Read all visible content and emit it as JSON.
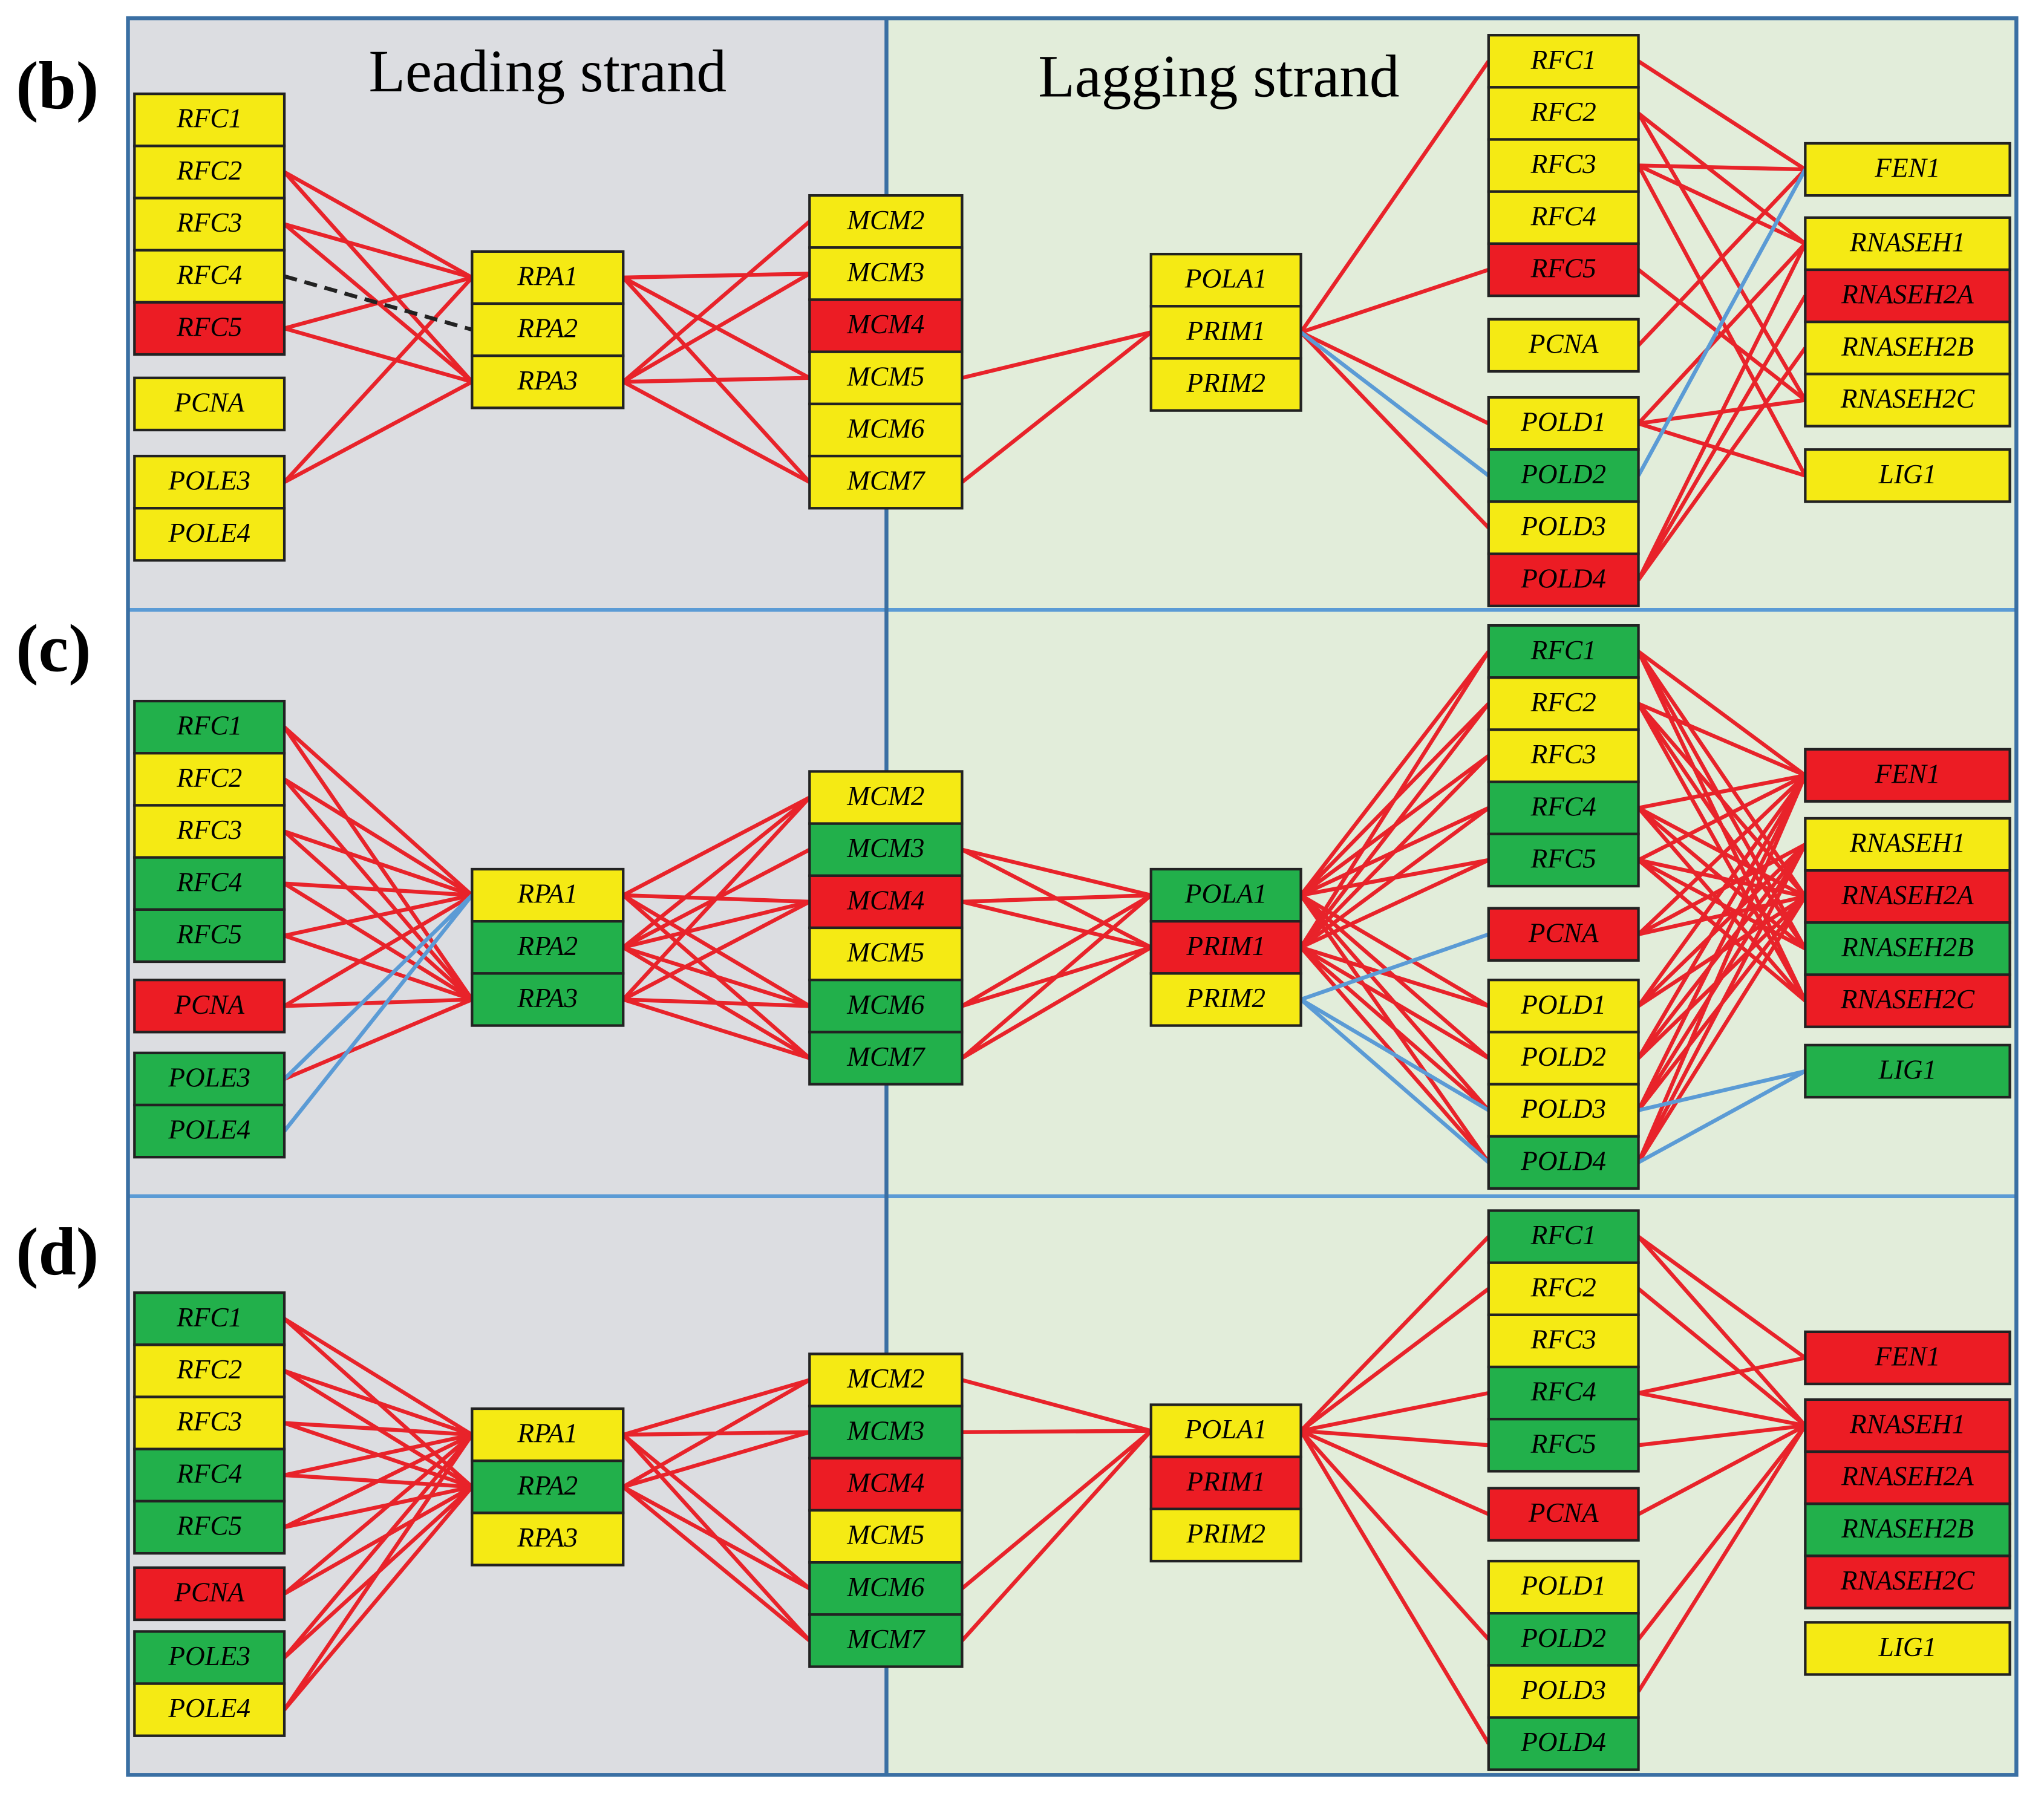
{
  "headers": {
    "leading": "Leading strand",
    "lagging": "Lagging strand"
  },
  "panels": [
    {
      "label": "(b)",
      "columns": [
        [
          {
            "label": "RFC1",
            "color": "yellow"
          },
          {
            "label": "RFC2",
            "color": "yellow"
          },
          {
            "label": "RFC3",
            "color": "yellow"
          },
          {
            "label": "RFC4",
            "color": "yellow"
          },
          {
            "label": "RFC5",
            "color": "red"
          },
          {
            "label": "PCNA",
            "color": "yellow"
          },
          {
            "label": "POLE3",
            "color": "yellow"
          },
          {
            "label": "POLE4",
            "color": "yellow"
          }
        ],
        [
          {
            "label": "RPA1",
            "color": "yellow"
          },
          {
            "label": "RPA2",
            "color": "yellow"
          },
          {
            "label": "RPA3",
            "color": "yellow"
          }
        ],
        [
          {
            "label": "MCM2",
            "color": "yellow"
          },
          {
            "label": "MCM3",
            "color": "yellow"
          },
          {
            "label": "MCM4",
            "color": "red"
          },
          {
            "label": "MCM5",
            "color": "yellow"
          },
          {
            "label": "MCM6",
            "color": "yellow"
          },
          {
            "label": "MCM7",
            "color": "yellow"
          }
        ],
        [
          {
            "label": "POLA1",
            "color": "yellow"
          },
          {
            "label": "PRIM1",
            "color": "yellow"
          },
          {
            "label": "PRIM2",
            "color": "yellow"
          }
        ],
        [
          {
            "label": "RFC1",
            "color": "yellow"
          },
          {
            "label": "RFC2",
            "color": "yellow"
          },
          {
            "label": "RFC3",
            "color": "yellow"
          },
          {
            "label": "RFC4",
            "color": "yellow"
          },
          {
            "label": "RFC5",
            "color": "red"
          },
          {
            "label": "PCNA",
            "color": "yellow"
          },
          {
            "label": "POLD1",
            "color": "yellow"
          },
          {
            "label": "POLD2",
            "color": "green"
          },
          {
            "label": "POLD3",
            "color": "yellow"
          },
          {
            "label": "POLD4",
            "color": "red"
          }
        ],
        [
          {
            "label": "FEN1",
            "color": "yellow"
          },
          {
            "label": "RNASEH1",
            "color": "yellow"
          },
          {
            "label": "RNASEH2A",
            "color": "red"
          },
          {
            "label": "RNASEH2B",
            "color": "yellow"
          },
          {
            "label": "RNASEH2C",
            "color": "yellow"
          },
          {
            "label": "LIG1",
            "color": "yellow"
          }
        ]
      ]
    },
    {
      "label": "(c)",
      "columns": [
        [
          {
            "label": "RFC1",
            "color": "green"
          },
          {
            "label": "RFC2",
            "color": "yellow"
          },
          {
            "label": "RFC3",
            "color": "yellow"
          },
          {
            "label": "RFC4",
            "color": "green"
          },
          {
            "label": "RFC5",
            "color": "green"
          },
          {
            "label": "PCNA",
            "color": "red"
          },
          {
            "label": "POLE3",
            "color": "green"
          },
          {
            "label": "POLE4",
            "color": "green"
          }
        ],
        [
          {
            "label": "RPA1",
            "color": "yellow"
          },
          {
            "label": "RPA2",
            "color": "green"
          },
          {
            "label": "RPA3",
            "color": "green"
          }
        ],
        [
          {
            "label": "MCM2",
            "color": "yellow"
          },
          {
            "label": "MCM3",
            "color": "green"
          },
          {
            "label": "MCM4",
            "color": "red"
          },
          {
            "label": "MCM5",
            "color": "yellow"
          },
          {
            "label": "MCM6",
            "color": "green"
          },
          {
            "label": "MCM7",
            "color": "green"
          }
        ],
        [
          {
            "label": "POLA1",
            "color": "green"
          },
          {
            "label": "PRIM1",
            "color": "red"
          },
          {
            "label": "PRIM2",
            "color": "yellow"
          }
        ],
        [
          {
            "label": "RFC1",
            "color": "green"
          },
          {
            "label": "RFC2",
            "color": "yellow"
          },
          {
            "label": "RFC3",
            "color": "yellow"
          },
          {
            "label": "RFC4",
            "color": "green"
          },
          {
            "label": "RFC5",
            "color": "green"
          },
          {
            "label": "PCNA",
            "color": "red"
          },
          {
            "label": "POLD1",
            "color": "yellow"
          },
          {
            "label": "POLD2",
            "color": "yellow"
          },
          {
            "label": "POLD3",
            "color": "yellow"
          },
          {
            "label": "POLD4",
            "color": "green"
          }
        ],
        [
          {
            "label": "FEN1",
            "color": "red"
          },
          {
            "label": "RNASEH1",
            "color": "yellow"
          },
          {
            "label": "RNASEH2A",
            "color": "red"
          },
          {
            "label": "RNASEH2B",
            "color": "green"
          },
          {
            "label": "RNASEH2C",
            "color": "red"
          },
          {
            "label": "LIG1",
            "color": "green"
          }
        ]
      ]
    },
    {
      "label": "(d)",
      "columns": [
        [
          {
            "label": "RFC1",
            "color": "green"
          },
          {
            "label": "RFC2",
            "color": "yellow"
          },
          {
            "label": "RFC3",
            "color": "yellow"
          },
          {
            "label": "RFC4",
            "color": "green"
          },
          {
            "label": "RFC5",
            "color": "green"
          },
          {
            "label": "PCNA",
            "color": "red"
          },
          {
            "label": "POLE3",
            "color": "green"
          },
          {
            "label": "POLE4",
            "color": "yellow"
          }
        ],
        [
          {
            "label": "RPA1",
            "color": "yellow"
          },
          {
            "label": "RPA2",
            "color": "green"
          },
          {
            "label": "RPA3",
            "color": "yellow"
          }
        ],
        [
          {
            "label": "MCM2",
            "color": "yellow"
          },
          {
            "label": "MCM3",
            "color": "green"
          },
          {
            "label": "MCM4",
            "color": "red"
          },
          {
            "label": "MCM5",
            "color": "yellow"
          },
          {
            "label": "MCM6",
            "color": "green"
          },
          {
            "label": "MCM7",
            "color": "green"
          }
        ],
        [
          {
            "label": "POLA1",
            "color": "yellow"
          },
          {
            "label": "PRIM1",
            "color": "red"
          },
          {
            "label": "PRIM2",
            "color": "yellow"
          }
        ],
        [
          {
            "label": "RFC1",
            "color": "green"
          },
          {
            "label": "RFC2",
            "color": "yellow"
          },
          {
            "label": "RFC3",
            "color": "yellow"
          },
          {
            "label": "RFC4",
            "color": "green"
          },
          {
            "label": "RFC5",
            "color": "green"
          },
          {
            "label": "PCNA",
            "color": "red"
          },
          {
            "label": "POLD1",
            "color": "yellow"
          },
          {
            "label": "POLD2",
            "color": "green"
          },
          {
            "label": "POLD3",
            "color": "yellow"
          },
          {
            "label": "POLD4",
            "color": "green"
          }
        ],
        [
          {
            "label": "FEN1",
            "color": "red"
          },
          {
            "label": "RNASEH1",
            "color": "red"
          },
          {
            "label": "RNASEH2A",
            "color": "red"
          },
          {
            "label": "RNASEH2B",
            "color": "green"
          },
          {
            "label": "RNASEH2C",
            "color": "red"
          },
          {
            "label": "LIG1",
            "color": "yellow"
          }
        ]
      ]
    }
  ]
}
